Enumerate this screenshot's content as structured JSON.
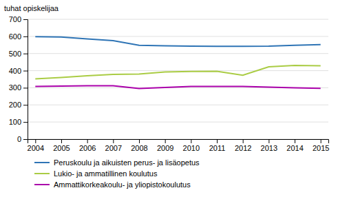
{
  "chart_data": {
    "type": "line",
    "ylabel": "tuhat opiskelijaa",
    "x": [
      2004,
      2005,
      2006,
      2007,
      2008,
      2009,
      2010,
      2011,
      2012,
      2013,
      2014,
      2015
    ],
    "series": [
      {
        "name": "Peruskoulu ja aikuisten perus- ja lisäopetus",
        "color": "#2e74b5",
        "values": [
          598,
          596,
          585,
          575,
          548,
          545,
          543,
          542,
          542,
          543,
          548,
          552
        ]
      },
      {
        "name": "Lukio- ja ammatillinen koulutus",
        "color": "#aacc44",
        "values": [
          352,
          360,
          370,
          378,
          380,
          392,
          395,
          396,
          373,
          422,
          430,
          428
        ]
      },
      {
        "name": "Ammattikorkeakoulu- ja yliopistokoulutus",
        "color": "#aa00aa",
        "values": [
          308,
          310,
          312,
          312,
          296,
          302,
          308,
          308,
          308,
          304,
          300,
          297
        ]
      }
    ],
    "xlim": [
      2003.7,
      2015.3
    ],
    "xticks": [
      2004,
      2005,
      2006,
      2007,
      2008,
      2009,
      2010,
      2011,
      2012,
      2013,
      2014,
      2015
    ],
    "ylim": [
      0,
      700
    ],
    "yticks": [
      0,
      100,
      200,
      300,
      400,
      500,
      600,
      700
    ],
    "grid": true,
    "legend": "bottom"
  }
}
